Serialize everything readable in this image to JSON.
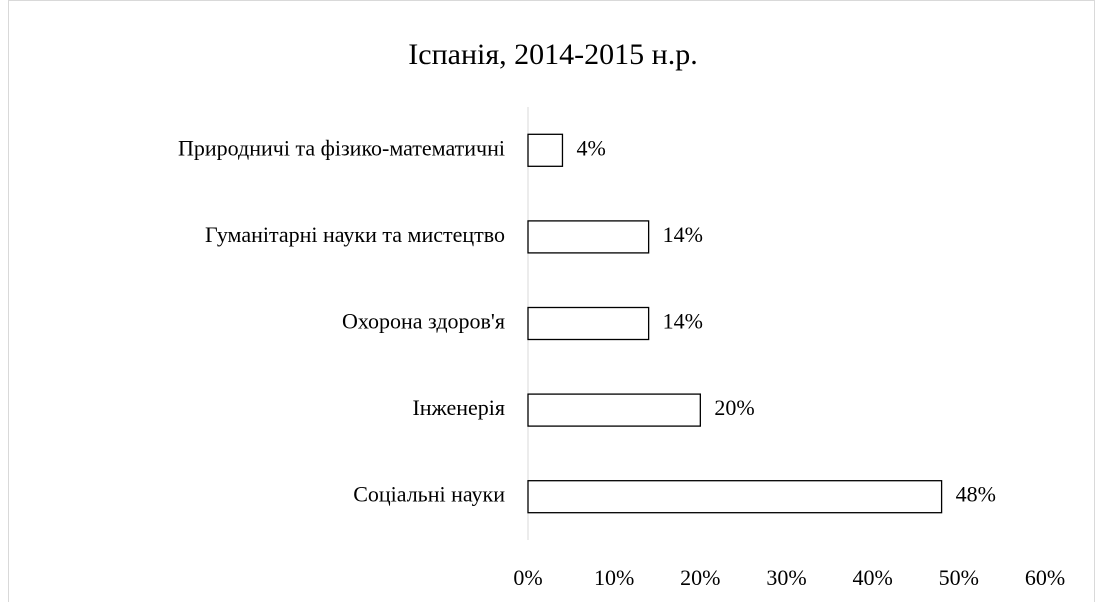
{
  "chart_data": {
    "type": "barh",
    "title": "Іспанія, 2014-2015 н.р.",
    "categories": [
      "Природничі та фізико-математичні",
      "Гуманітарні науки та мистецтво",
      "Охорона здоров'я",
      "Інженерія",
      "Соціальні науки"
    ],
    "values": [
      4,
      14,
      14,
      20,
      48
    ],
    "value_labels": [
      "4%",
      "14%",
      "14%",
      "20%",
      "48%"
    ],
    "color": "#ffffff",
    "edgecolor": "#000000",
    "xlim": [
      0,
      60
    ],
    "xticks": [
      {
        "value": 0,
        "label": "0%"
      },
      {
        "value": 10,
        "label": "10%"
      },
      {
        "value": 20,
        "label": "20%"
      },
      {
        "value": 30,
        "label": "30%"
      },
      {
        "value": 40,
        "label": "40%"
      },
      {
        "value": 50,
        "label": "50%"
      },
      {
        "value": 60,
        "label": "60%"
      }
    ],
    "grid": false
  }
}
